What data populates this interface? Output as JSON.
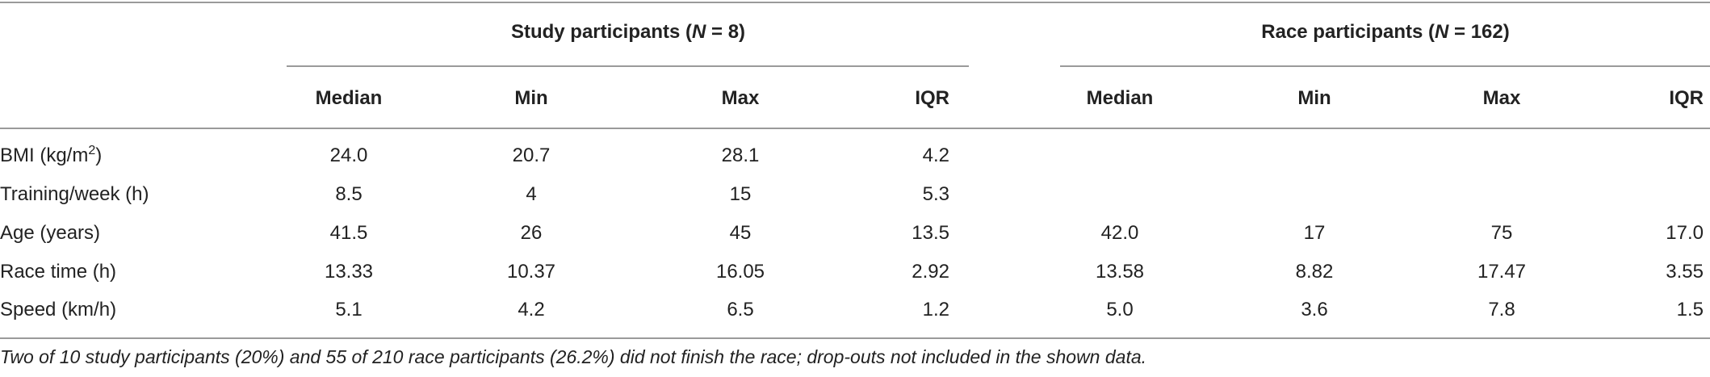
{
  "table": {
    "groups": [
      {
        "label_prefix": "Study participants (",
        "n_symbol": "N",
        "label_suffix": " = 8)"
      },
      {
        "label_prefix": "Race participants (",
        "n_symbol": "N",
        "label_suffix": " = 162)"
      }
    ],
    "columns": [
      "Median",
      "Min",
      "Max",
      "IQR",
      "Median",
      "Min",
      "Max",
      "IQR"
    ],
    "rows": [
      {
        "label": "BMI (kg/m",
        "label_sup": "2",
        "label_end": ")",
        "cells": [
          "24.0",
          "20.7",
          "28.1",
          "4.2",
          "",
          "",
          "",
          ""
        ]
      },
      {
        "label": "Training/week (h)",
        "label_sup": "",
        "label_end": "",
        "cells": [
          "8.5",
          "4",
          "15",
          "5.3",
          "",
          "",
          "",
          ""
        ]
      },
      {
        "label": "Age (years)",
        "label_sup": "",
        "label_end": "",
        "cells": [
          "41.5",
          "26",
          "45",
          "13.5",
          "42.0",
          "17",
          "75",
          "17.0"
        ]
      },
      {
        "label": "Race time (h)",
        "label_sup": "",
        "label_end": "",
        "cells": [
          "13.33",
          "10.37",
          "16.05",
          "2.92",
          "13.58",
          "8.82",
          "17.47",
          "3.55"
        ]
      },
      {
        "label": "Speed (km/h)",
        "label_sup": "",
        "label_end": "",
        "cells": [
          "5.1",
          "4.2",
          "6.5",
          "1.2",
          "5.0",
          "3.6",
          "7.8",
          "1.5"
        ]
      }
    ],
    "footnote": "Two of 10 study participants (20%) and 55 of 210 race participants (26.2%) did not finish the race; drop-outs not included in the shown data."
  }
}
